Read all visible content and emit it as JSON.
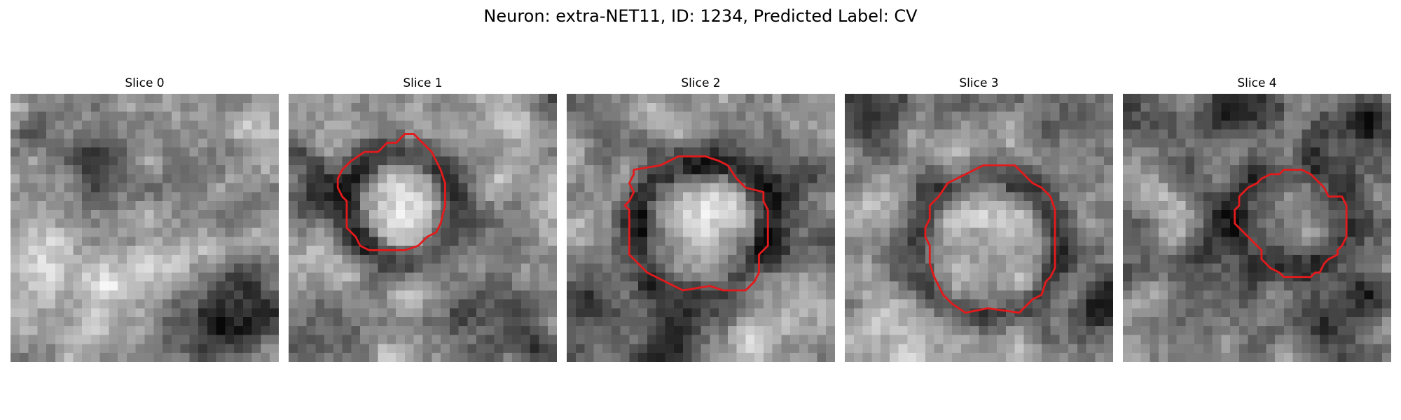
{
  "figure": {
    "title": "Neuron: extra-NET11, ID: 1234, Predicted Label: CV"
  },
  "outline_color": "#e31a1c",
  "colormap": "gray",
  "panels": [
    {
      "title": "Slice 0"
    },
    {
      "title": "Slice 1"
    },
    {
      "title": "Slice 2"
    },
    {
      "title": "Slice 3"
    },
    {
      "title": "Slice 4"
    }
  ]
}
